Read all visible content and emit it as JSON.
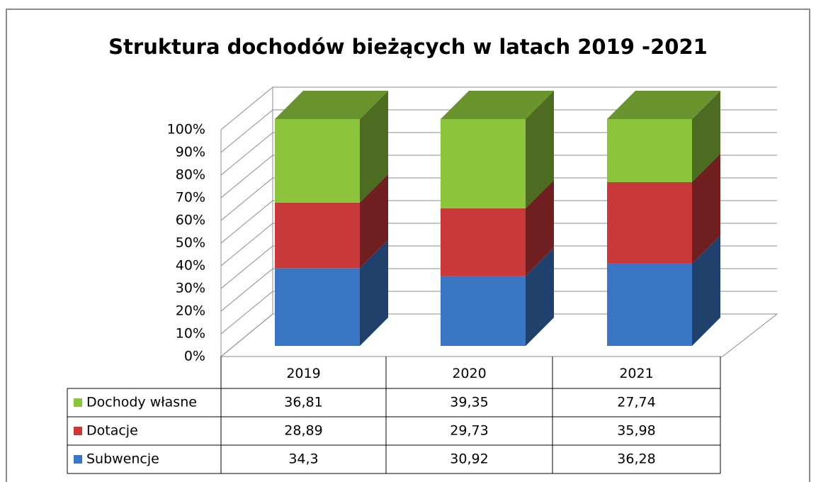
{
  "chart_data": {
    "type": "stacked_bar_3d",
    "title": "Struktura dochodów bieżących w latach 2019 -2021",
    "categories": [
      "2019",
      "2020",
      "2021"
    ],
    "series": [
      {
        "name": "Subwencje",
        "color": "#3a76c4",
        "values": [
          34.3,
          30.92,
          36.28
        ],
        "value_labels": [
          "34,3",
          "30,92",
          "36,28"
        ]
      },
      {
        "name": "Dotacje",
        "color": "#c9393a",
        "values": [
          28.89,
          29.73,
          35.98
        ],
        "value_labels": [
          "28,89",
          "29,73",
          "35,98"
        ]
      },
      {
        "name": "Dochody własne",
        "color": "#8cc43c",
        "values": [
          36.81,
          39.35,
          27.74
        ],
        "value_labels": [
          "36,81",
          "39,35",
          "27,74"
        ]
      }
    ],
    "ylim": [
      0,
      100
    ],
    "yticks": [
      {
        "value": 0,
        "label": "0%"
      },
      {
        "value": 10,
        "label": "10%"
      },
      {
        "value": 20,
        "label": "20%"
      },
      {
        "value": 30,
        "label": "30%"
      },
      {
        "value": 40,
        "label": "40%"
      },
      {
        "value": 50,
        "label": "50%"
      },
      {
        "value": 60,
        "label": "60%"
      },
      {
        "value": 70,
        "label": "70%"
      },
      {
        "value": 80,
        "label": "80%"
      },
      {
        "value": 90,
        "label": "90%"
      },
      {
        "value": 100,
        "label": "100%"
      }
    ],
    "grid": true
  }
}
